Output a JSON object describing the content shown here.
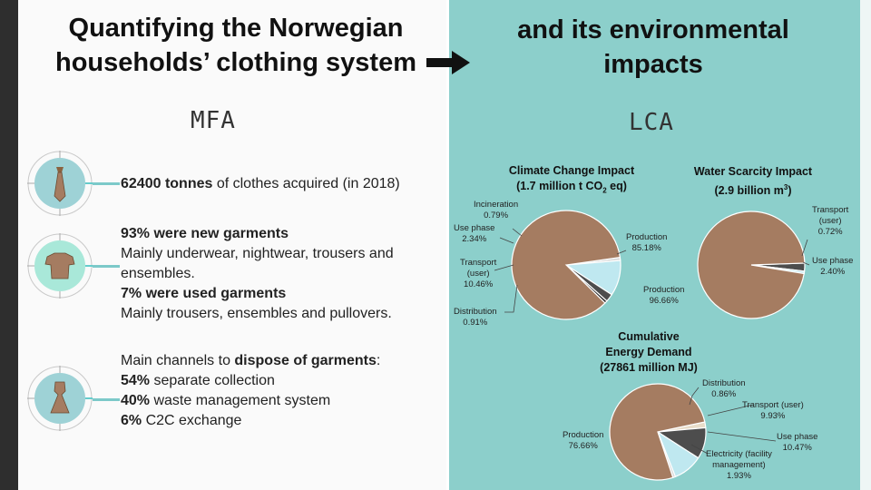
{
  "header": {
    "title_left_line1": "Quantifying the Norwegian",
    "title_left_line2": "households’ clothing system",
    "title_right_line1": "and its environmental",
    "title_right_line2": "impacts"
  },
  "sections": {
    "mfa": "MFA",
    "lca": "LCA"
  },
  "mfa": {
    "acquired": {
      "bold": "62400 tonnes",
      "text": " of clothes acquired (in 2018)",
      "icon": "tie-icon"
    },
    "garments": {
      "new_bold": "93% were new garments",
      "new_text_1": "Mainly underwear, nightwear, trousers and",
      "new_text_2": "ensembles.",
      "used_bold": "7% were used garments",
      "used_text": "Mainly trousers, ensembles and pullovers.",
      "icon": "tshirt-icon"
    },
    "disposal": {
      "intro": "Main channels to ",
      "intro_bold": "dispose of garments",
      "intro_end": ":",
      "line1_bold": "54%",
      "line1_text": " separate collection",
      "line2_bold": "40%",
      "line2_text": " waste management system",
      "line3_bold": "6%",
      "line3_text": " C2C exchange",
      "icon": "dress-icon"
    }
  },
  "colors": {
    "left_bg": "#fafafa",
    "right_bg": "#8ccfcb",
    "production": "#a57c61",
    "transport": "#bfe8f0",
    "use_phase": "#4d4d4d",
    "distribution": "#d9d9d9",
    "incineration": "#2b2b2b",
    "electricity": "#e8dcc8",
    "icon_circle_1": "#9ed2d6",
    "icon_circle_2": "#a9e8d9"
  },
  "chart_data": [
    {
      "type": "pie",
      "title_line1": "Climate Change Impact",
      "title_line2": "(1.7 million t CO",
      "title_sub": "2",
      "title_line2_end": " eq)",
      "slices": [
        {
          "name": "Production",
          "value": 85.18,
          "label": "85.18%",
          "color": "#a57c61"
        },
        {
          "name": "Distribution",
          "value": 0.91,
          "label": "0.91%",
          "color": "#d9d9d9"
        },
        {
          "name": "Transport (user)",
          "value": 10.46,
          "label": "10.46%",
          "color": "#bfe8f0"
        },
        {
          "name": "Use phase",
          "value": 2.34,
          "label": "2.34%",
          "color": "#4d4d4d"
        },
        {
          "name": "Incineration",
          "value": 0.79,
          "label": "0.79%",
          "color": "#2b2b2b"
        }
      ]
    },
    {
      "type": "pie",
      "title_line1": "Water Scarcity Impact",
      "title_line2": "(2.9 billion m",
      "title_sup": "3",
      "title_line2_end": ")",
      "slices": [
        {
          "name": "Production",
          "value": 96.66,
          "label": "96.66%",
          "color": "#a57c61"
        },
        {
          "name": "Use phase",
          "value": 2.4,
          "label": "2.40%",
          "color": "#4d4d4d"
        },
        {
          "name": "Transport (user)",
          "value": 0.72,
          "label": "0.72%",
          "color": "#bfe8f0"
        }
      ]
    },
    {
      "type": "pie",
      "title_line1": "Cumulative",
      "title_line2": "Energy Demand",
      "title_line3": "(27861 million MJ)",
      "slices": [
        {
          "name": "Production",
          "value": 76.66,
          "label": "76.66%",
          "color": "#a57c61"
        },
        {
          "name": "Electricity (facility management)",
          "value": 1.93,
          "label": "1.93%",
          "color": "#e8dcc8"
        },
        {
          "name": "Use phase",
          "value": 10.47,
          "label": "10.47%",
          "color": "#4d4d4d"
        },
        {
          "name": "Transport (user)",
          "value": 9.93,
          "label": "9.93%",
          "color": "#bfe8f0"
        },
        {
          "name": "Distribution",
          "value": 0.86,
          "label": "0.86%",
          "color": "#d9d9d9"
        }
      ]
    }
  ],
  "pie_labels": {
    "c1": {
      "incineration": "Incineration",
      "incineration_v": "0.79%",
      "use_phase": "Use phase",
      "use_phase_v": "2.34%",
      "transport_1": "Transport",
      "transport_2": "(user)",
      "transport_v": "10.46%",
      "distribution": "Distribution",
      "distribution_v": "0.91%",
      "production": "Production",
      "production_v": "85.18%"
    },
    "c2": {
      "transport_1": "Transport",
      "transport_2": "(user)",
      "transport_v": "0.72%",
      "use_phase": "Use phase",
      "use_phase_v": "2.40%",
      "production": "Production",
      "production_v": "96.66%"
    },
    "c3": {
      "distribution": "Distribution",
      "distribution_v": "0.86%",
      "transport": "Transport (user)",
      "transport_v": "9.93%",
      "use_phase": "Use phase",
      "use_phase_v": "10.47%",
      "electricity_1": "Electricity (facility",
      "electricity_2": "management)",
      "electricity_v": "1.93%",
      "production": "Production",
      "production_v": "76.66%"
    }
  }
}
